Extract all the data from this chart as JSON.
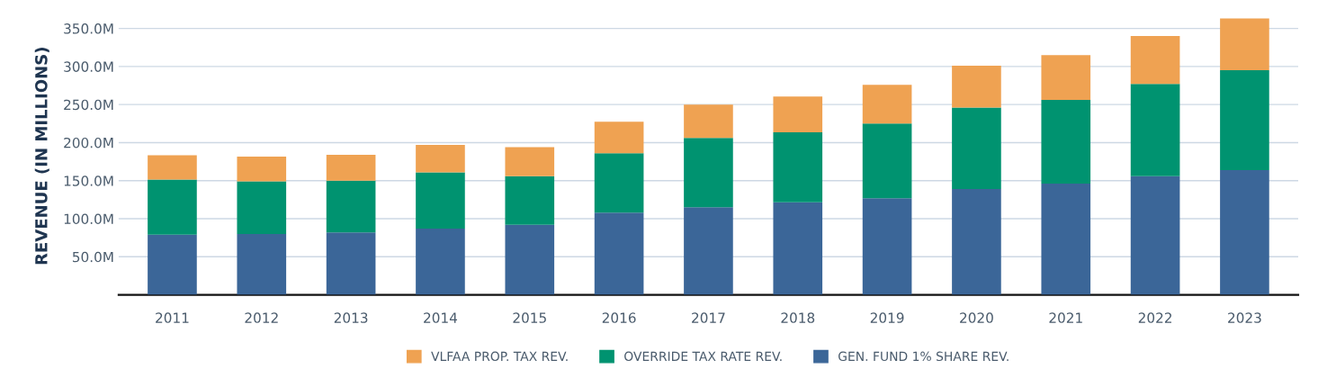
{
  "chart_data": {
    "type": "bar",
    "stacked": true,
    "ylabel": "REVENUE (IN MILLIONS)",
    "categories": [
      "2011",
      "2012",
      "2013",
      "2014",
      "2015",
      "2016",
      "2017",
      "2018",
      "2019",
      "2020",
      "2021",
      "2022",
      "2023"
    ],
    "series": [
      {
        "name": "GEN. FUND 1% SHARE REV.",
        "color": "#3b6698",
        "values": [
          79,
          80,
          82,
          87,
          92,
          108,
          115,
          121.5,
          127,
          139,
          146,
          156,
          164
        ]
      },
      {
        "name": "OVERRIDE TAX RATE REV.",
        "color": "#009370",
        "values": [
          72.5,
          69,
          68,
          74,
          64,
          78,
          91,
          92,
          98,
          107,
          110,
          121,
          131
        ]
      },
      {
        "name": "VLFAA PROP. TAX REV.",
        "color": "#efa252",
        "values": [
          32,
          32.5,
          34,
          36,
          38,
          41.5,
          44,
          47,
          51,
          55,
          59,
          63,
          68
        ]
      }
    ],
    "ylim": [
      0,
      365
    ],
    "yticks": [
      {
        "value": 50,
        "label": "50.0M"
      },
      {
        "value": 100,
        "label": "100.0M"
      },
      {
        "value": 150,
        "label": "150.0M"
      },
      {
        "value": 200,
        "label": "200.0M"
      },
      {
        "value": 250,
        "label": "250.0M"
      },
      {
        "value": 300,
        "label": "300.0M"
      },
      {
        "value": 350,
        "label": "350.0M"
      }
    ],
    "grid": "y",
    "legend": "bottom"
  }
}
